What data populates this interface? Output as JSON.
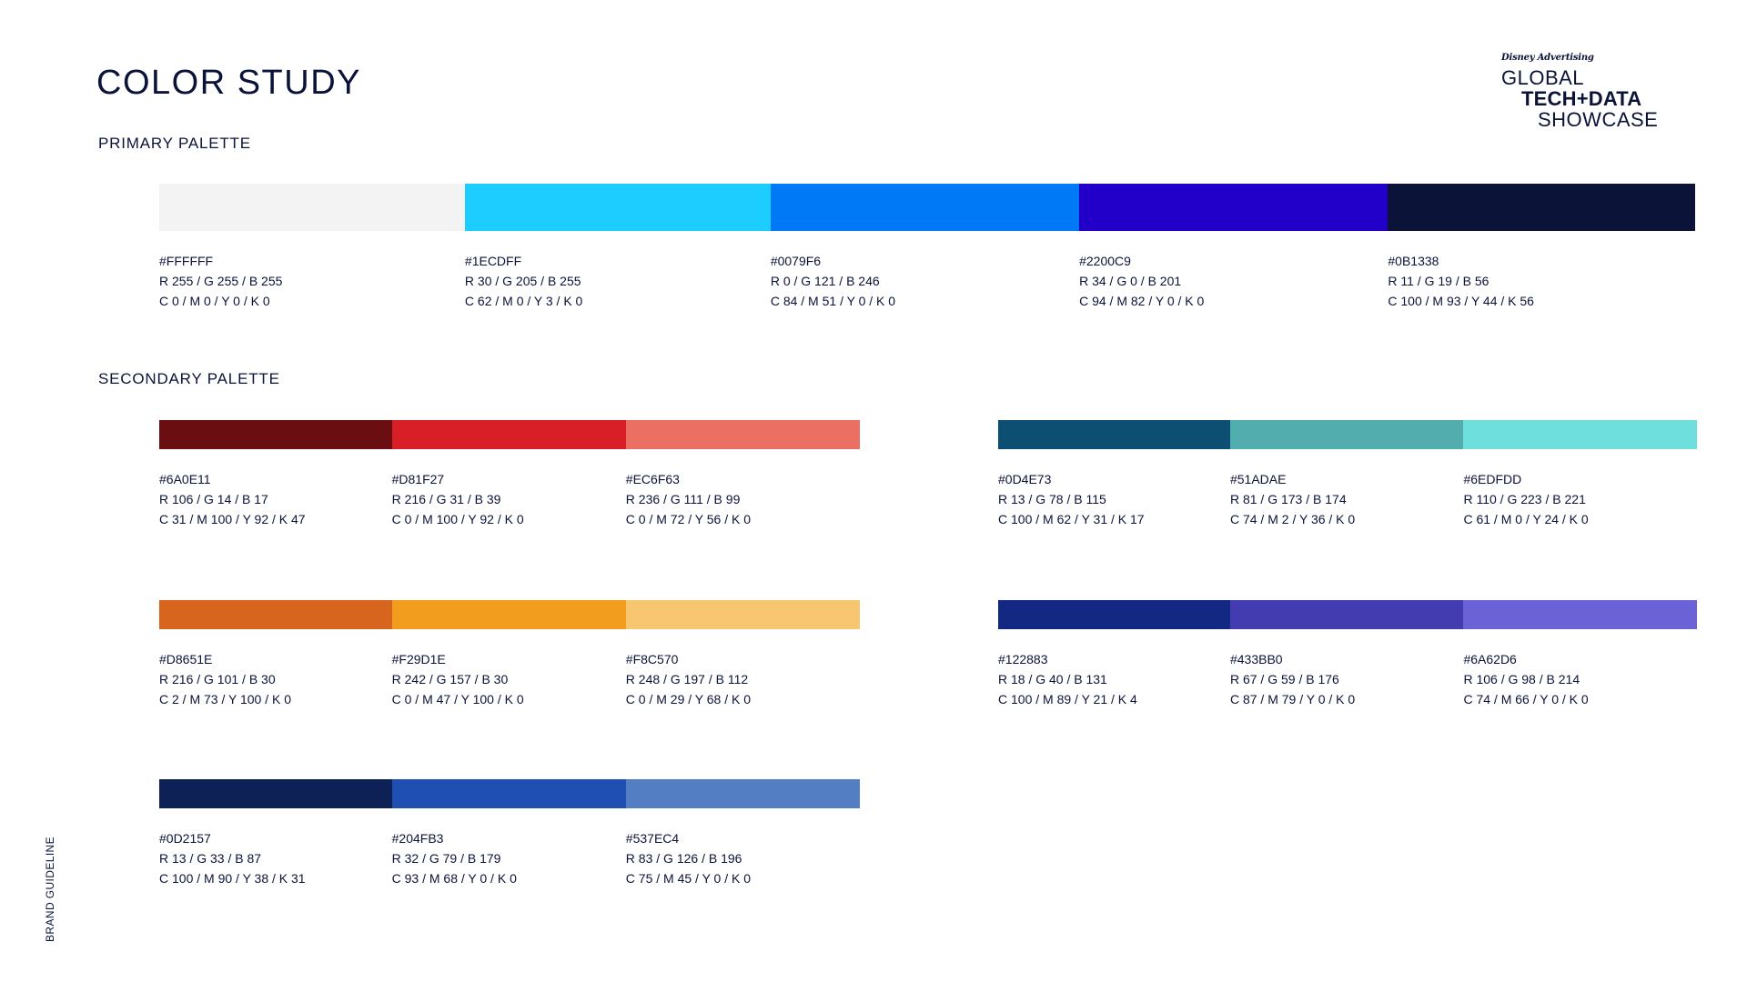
{
  "title": "COLOR STUDY",
  "logo": {
    "brand": "Disney Advertising",
    "line1": "GLOBAL",
    "line2": "TECH+DATA",
    "line3": "SHOWCASE"
  },
  "primary": {
    "label": "PRIMARY PALETTE",
    "swatches": [
      {
        "hex": "#FFFFFF",
        "rgb": "R 255 / G 255 / B 255",
        "cmyk": "C 0 / M 0 / Y 0 / K 0",
        "color": "#F3F3F3"
      },
      {
        "hex": "#1ECDFF",
        "rgb": "R 30 / G 205 / B 255",
        "cmyk": "C 62 / M 0 / Y 3 / K 0",
        "color": "#1ECDFF"
      },
      {
        "hex": "#0079F6",
        "rgb": "R 0 / G 121 / B 246",
        "cmyk": "C 84 / M 51 / Y 0 / K 0",
        "color": "#0079F6"
      },
      {
        "hex": "#2200C9",
        "rgb": "R 34 / G 0  / B 201",
        "cmyk": "C 94 / M 82 / Y 0 / K 0",
        "color": "#2200C9"
      },
      {
        "hex": "#0B1338",
        "rgb": "R 11 / G 19 / B 56",
        "cmyk": "C 100 / M 93 / Y 44 / K 56",
        "color": "#0B1338"
      }
    ]
  },
  "secondary": {
    "label": "SECONDARY PALETTE",
    "groups": [
      {
        "swatches": [
          {
            "hex": "#6A0E11",
            "rgb": "R 106 / G 14 / B 17",
            "cmyk": "C 31 / M 100 / Y 92 / K 47",
            "color": "#6A0E11"
          },
          {
            "hex": "#D81F27",
            "rgb": "R 216 / G 31 / B 39",
            "cmyk": "C 0 / M 100 / Y 92 / K 0",
            "color": "#D81F27"
          },
          {
            "hex": "#EC6F63",
            "rgb": "R 236 / G 111  / B 99",
            "cmyk": "C 0 / M 72 / Y 56 / K 0",
            "color": "#EC6F63"
          }
        ]
      },
      {
        "swatches": [
          {
            "hex": "#0D4E73",
            "rgb": "R 13 / G 78 / B 115",
            "cmyk": "C 100 / M 62 / Y 31 / K 17",
            "color": "#0D4E73"
          },
          {
            "hex": "#51ADAE",
            "rgb": "R 81 / G 173 / B 174",
            "cmyk": "C 74 / M 2 / Y 36 / K 0",
            "color": "#51ADAE"
          },
          {
            "hex": "#6EDFDD",
            "rgb": "R 110 / G 223 / B 221",
            "cmyk": "C 61 / M 0 / Y 24 / K 0",
            "color": "#6EDFDD"
          }
        ]
      },
      {
        "swatches": [
          {
            "hex": "#D8651E",
            "rgb": "R 216 / G 101 / B 30",
            "cmyk": "C 2 / M 73 / Y 100 / K 0",
            "color": "#D8651E"
          },
          {
            "hex": "#F29D1E",
            "rgb": "R 242 / G 157 / B 30",
            "cmyk": "C 0 / M 47 / Y 100 / K 0",
            "color": "#F29D1E"
          },
          {
            "hex": "#F8C570",
            "rgb": "R 248 / G 197 / B 112",
            "cmyk": "C 0 / M 29 / Y 68 / K 0",
            "color": "#F8C570"
          }
        ]
      },
      {
        "swatches": [
          {
            "hex": "#122883",
            "rgb": "R 18 / G 40 / B 131",
            "cmyk": "C 100 / M 89 / Y 21 / K 4",
            "color": "#122883"
          },
          {
            "hex": "#433BB0",
            "rgb": "R 67 / G 59 / B 176",
            "cmyk": "C 87 / M 79 / Y 0 / K 0",
            "color": "#433BB0"
          },
          {
            "hex": "#6A62D6",
            "rgb": "R 106 / G 98 / B 214",
            "cmyk": "C 74 / M 66 / Y 0 / K 0",
            "color": "#6A62D6"
          }
        ]
      },
      {
        "swatches": [
          {
            "hex": "#0D2157",
            "rgb": "R 13 / G 33 / B 87",
            "cmyk": "C 100 / M 90 / Y 38 / K 31",
            "color": "#0D2157"
          },
          {
            "hex": "#204FB3",
            "rgb": "R 32 / G 79 / B 179",
            "cmyk": "C 93 / M 68 / Y 0 / K 0",
            "color": "#204FB3"
          },
          {
            "hex": "#537EC4",
            "rgb": "R 83 / G 126 / B 196",
            "cmyk": "C 75 / M 45 / Y 0 / K 0",
            "color": "#537EC4"
          }
        ]
      }
    ]
  },
  "side_label": "BRAND GUIDELINE"
}
